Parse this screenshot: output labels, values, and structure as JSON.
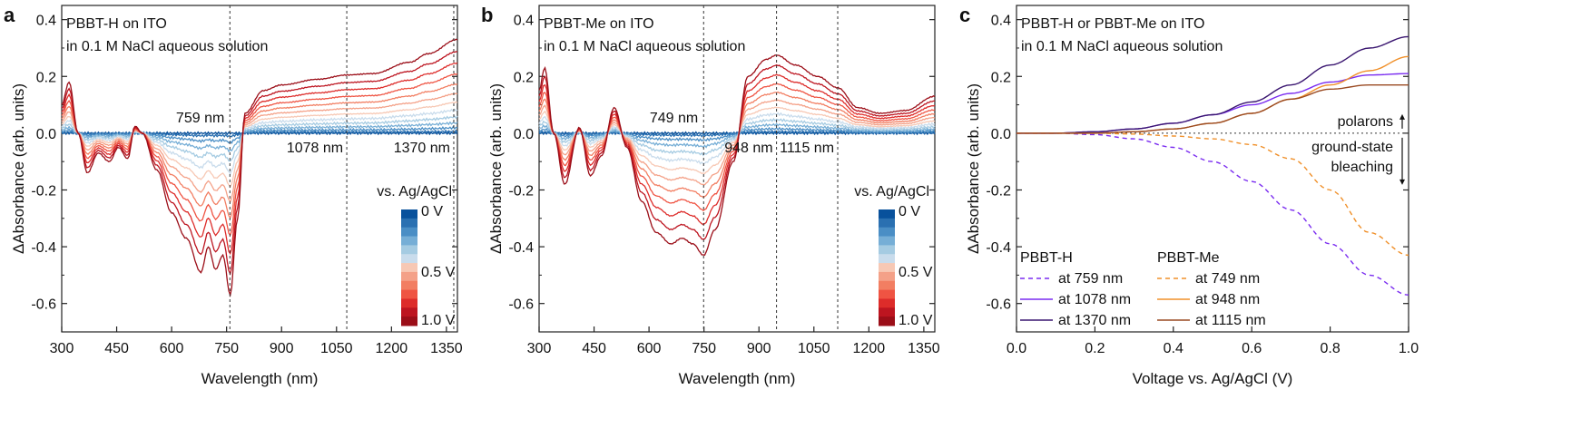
{
  "colors": {
    "scale": [
      "#08519c",
      "#2a70b1",
      "#4a8ec5",
      "#76aed6",
      "#a5cbe2",
      "#c9dcec",
      "#f7c8b4",
      "#f4a188",
      "#f27e62",
      "#ef5443",
      "#dd2c2a",
      "#bd1520",
      "#9b0e18"
    ],
    "pbbt_h": "#7a2cf0",
    "pbbt_h_dark": "#3a1670",
    "pbbt_me": "#f0902a",
    "pbbt_me_dark": "#9a4a22"
  },
  "chart_data": [
    {
      "panel": "a",
      "type": "line",
      "title_lines": [
        "PBBT-H on ITO",
        "in 0.1 M NaCl aqueous solution"
      ],
      "xlabel": "Wavelength (nm)",
      "ylabel": "ΔAbsorbance (arb. units)",
      "xlim": [
        300,
        1380
      ],
      "ylim": [
        -0.7,
        0.45
      ],
      "xticks": [
        "300",
        "450",
        "600",
        "750",
        "900",
        "1050",
        "1200",
        "1350"
      ],
      "yticks": [
        "0.4",
        "0.2",
        "0.0",
        "-0.2",
        "-0.4",
        "-0.6"
      ],
      "markers": [
        {
          "x": 759,
          "label": "759 nm",
          "label_pos": "above"
        },
        {
          "x": 1078,
          "label": "1078 nm",
          "label_pos": "below"
        },
        {
          "x": 1370,
          "label": "1370 nm",
          "label_pos": "below"
        }
      ],
      "colorbar": {
        "title": "vs. Ag/AgCl",
        "labels": [
          "0 V",
          "0.5 V",
          "1.0 V"
        ]
      },
      "spectrum_keypoints": {
        "x": [
          300,
          320,
          345,
          370,
          400,
          430,
          455,
          480,
          500,
          520,
          560,
          600,
          640,
          680,
          700,
          720,
          740,
          760,
          780,
          800,
          850,
          900,
          1000,
          1078,
          1150,
          1250,
          1300,
          1380
        ],
        "y": [
          0.1,
          0.18,
          0.0,
          -0.14,
          -0.07,
          -0.1,
          -0.05,
          -0.09,
          0.025,
          0.0,
          -0.13,
          -0.28,
          -0.37,
          -0.49,
          -0.4,
          -0.48,
          -0.43,
          -0.57,
          -0.3,
          0.07,
          0.15,
          0.17,
          0.19,
          0.205,
          0.21,
          0.25,
          0.28,
          0.33
        ]
      }
    },
    {
      "panel": "b",
      "type": "line",
      "title_lines": [
        "PBBT-Me on ITO",
        "in 0.1 M NaCl aqueous solution"
      ],
      "xlabel": "Wavelength (nm)",
      "ylabel": "ΔAbsorbance (arb. units)",
      "xlim": [
        300,
        1380
      ],
      "ylim": [
        -0.7,
        0.45
      ],
      "xticks": [
        "300",
        "450",
        "600",
        "750",
        "900",
        "1050",
        "1200",
        "1350"
      ],
      "yticks": [
        "0.4",
        "0.2",
        "0.0",
        "-0.2",
        "-0.4",
        "-0.6"
      ],
      "markers": [
        {
          "x": 749,
          "label": "749 nm",
          "label_pos": "above"
        },
        {
          "x": 948,
          "label": "948 nm",
          "label_pos": "below"
        },
        {
          "x": 1115,
          "label": "1115 nm",
          "label_pos": "below"
        }
      ],
      "colorbar": {
        "title": "vs. Ag/AgCl",
        "labels": [
          "0 V",
          "0.5 V",
          "1.0 V"
        ]
      },
      "spectrum_keypoints": {
        "x": [
          300,
          315,
          340,
          370,
          410,
          440,
          470,
          505,
          540,
          580,
          620,
          660,
          690,
          720,
          749,
          780,
          830,
          870,
          920,
          948,
          1000,
          1060,
          1115,
          1170,
          1230,
          1300,
          1380
        ],
        "y": [
          0.15,
          0.23,
          0.0,
          -0.18,
          0.02,
          -0.15,
          -0.08,
          0.09,
          -0.05,
          -0.24,
          -0.35,
          -0.39,
          -0.37,
          -0.39,
          -0.43,
          -0.34,
          -0.1,
          0.2,
          0.26,
          0.275,
          0.24,
          0.2,
          0.16,
          0.09,
          0.07,
          0.08,
          0.13
        ]
      }
    },
    {
      "panel": "c",
      "type": "line",
      "title_lines": [
        "PBBT-H or PBBT-Me on ITO",
        "in 0.1 M NaCl aqueous solution"
      ],
      "xlabel": "Voltage vs. Ag/AgCl (V)",
      "ylabel": "ΔAbsorbance (arb. units)",
      "xlim": [
        0,
        1.0
      ],
      "ylim": [
        -0.7,
        0.45
      ],
      "xticks": [
        "0.0",
        "0.2",
        "0.4",
        "0.6",
        "0.8",
        "1.0"
      ],
      "yticks": [
        "0.4",
        "0.2",
        "0.0",
        "-0.2",
        "-0.4",
        "-0.6"
      ],
      "annotations": [
        "polarons",
        "ground-state",
        "bleaching"
      ],
      "legend_groups": [
        {
          "title": "PBBT-H",
          "entries": [
            "at 759 nm",
            "at 1078 nm",
            "at 1370 nm"
          ]
        },
        {
          "title": "PBBT-Me",
          "entries": [
            "at 749 nm",
            "at 948 nm",
            "at 1115 nm"
          ]
        }
      ],
      "x": [
        0.0,
        0.1,
        0.2,
        0.3,
        0.4,
        0.5,
        0.6,
        0.7,
        0.8,
        0.9,
        1.0
      ],
      "series": [
        {
          "name": "at 759 nm",
          "group": "PBBT-H",
          "style": "dashed",
          "y": [
            0,
            0,
            -0.005,
            -0.02,
            -0.05,
            -0.1,
            -0.17,
            -0.27,
            -0.39,
            -0.5,
            -0.57
          ]
        },
        {
          "name": "at 1078 nm",
          "group": "PBBT-H",
          "style": "solid",
          "y": [
            0,
            0,
            0.005,
            0.015,
            0.035,
            0.065,
            0.1,
            0.14,
            0.18,
            0.205,
            0.21
          ]
        },
        {
          "name": "at 1370 nm",
          "group": "PBBT-H",
          "style": "solid",
          "y": [
            0,
            0,
            0.005,
            0.015,
            0.035,
            0.065,
            0.11,
            0.17,
            0.24,
            0.3,
            0.34
          ]
        },
        {
          "name": "at 749 nm",
          "group": "PBBT-Me",
          "style": "dashed",
          "y": [
            0,
            0,
            0,
            -0.003,
            -0.01,
            -0.02,
            -0.04,
            -0.09,
            -0.2,
            -0.35,
            -0.43
          ]
        },
        {
          "name": "at 948 nm",
          "group": "PBBT-Me",
          "style": "solid",
          "y": [
            0,
            0,
            0,
            0.005,
            0.015,
            0.035,
            0.07,
            0.12,
            0.17,
            0.22,
            0.27
          ]
        },
        {
          "name": "at 1115 nm",
          "group": "PBBT-Me",
          "style": "solid",
          "y": [
            0,
            0,
            0,
            0.005,
            0.015,
            0.035,
            0.07,
            0.12,
            0.155,
            0.17,
            0.17
          ]
        }
      ]
    }
  ]
}
